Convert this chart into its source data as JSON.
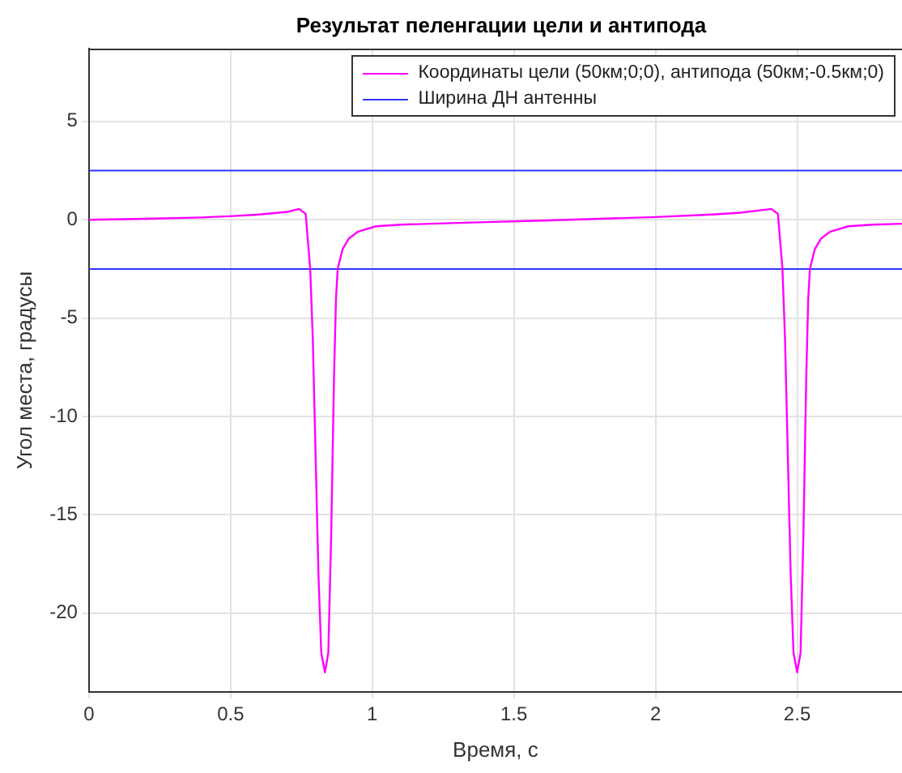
{
  "chart_data": {
    "type": "line",
    "title": "Результат пеленгации цели и антипода",
    "xlabel": "Время, с",
    "ylabel": "Угол места, градусы",
    "xlim": [
      0,
      2.87
    ],
    "ylim": [
      -24,
      8.7
    ],
    "xticks": [
      0,
      0.5,
      1,
      1.5,
      2,
      2.5
    ],
    "yticks": [
      -20,
      -15,
      -10,
      -5,
      0,
      5
    ],
    "grid": true,
    "legend": "top right",
    "marker": "none",
    "line_style": "solid",
    "series": [
      {
        "name": "Координаты цели (50км;0;0), антипода (50км;-0.5км;0)",
        "color": "#ff00ff",
        "x": [
          0,
          0.2,
          0.4,
          0.51,
          0.6,
          0.7,
          0.742,
          0.765,
          0.781,
          0.79,
          0.8,
          0.81,
          0.82,
          0.833,
          0.845,
          0.855,
          0.865,
          0.872,
          0.878,
          0.895,
          0.917,
          0.95,
          1.013,
          1.1,
          1.207,
          1.4,
          1.6,
          1.8,
          2.0,
          2.2,
          2.3,
          2.409,
          2.432,
          2.448,
          2.457,
          2.467,
          2.477,
          2.487,
          2.5,
          2.512,
          2.522,
          2.532,
          2.539,
          2.545,
          2.562,
          2.584,
          2.617,
          2.68,
          2.767,
          2.87
        ],
        "values": [
          0,
          0.05,
          0.12,
          0.19,
          0.27,
          0.4,
          0.55,
          0.3,
          -2.5,
          -6,
          -12,
          -18,
          -22,
          -23,
          -22,
          -16,
          -8,
          -4,
          -2.5,
          -1.5,
          -0.96,
          -0.6,
          -0.33,
          -0.25,
          -0.2,
          -0.12,
          -0.04,
          0.05,
          0.14,
          0.27,
          0.36,
          0.55,
          0.3,
          -2.5,
          -6,
          -12,
          -18,
          -22,
          -23,
          -22,
          -16,
          -8,
          -4,
          -2.5,
          -1.5,
          -0.96,
          -0.6,
          -0.33,
          -0.25,
          -0.2
        ]
      }
    ],
    "ref_lines": [
      {
        "axis": "y",
        "value": 2.5,
        "label": "Ширина ДН антенны",
        "color": "#3333ff"
      },
      {
        "axis": "y",
        "value": -2.5,
        "color": "#3333ff"
      }
    ]
  }
}
